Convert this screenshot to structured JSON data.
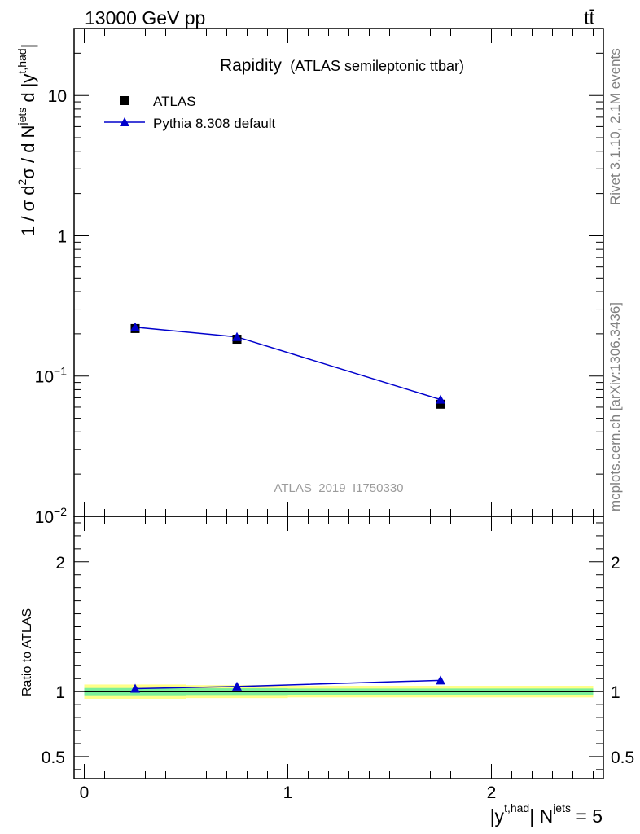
{
  "header": {
    "energy_label": "13000 GeV pp",
    "process_label": "tt̄"
  },
  "side_labels": {
    "rivet": "Rivet 3.1.10,  2.1M events",
    "mcplots": "mcplots.cern.ch [arXiv:1306.3436]"
  },
  "chart_data": [
    {
      "type": "scatter",
      "title": "Rapidity",
      "subtitle": "(ATLAS semileptonic ttbar)",
      "watermark": "ATLAS_2019_I1750330",
      "ylabel_parts": [
        "1 / σ d",
        "2",
        "σ / d N",
        "jets",
        " d |y",
        "t,had",
        "|"
      ],
      "yscale": "log",
      "xlim": [
        -0.05,
        2.55
      ],
      "ylim": [
        0.01,
        30
      ],
      "ytick_labels": [
        {
          "value": 10,
          "base": "10",
          "exp": ""
        },
        {
          "value": 1,
          "base": "1",
          "exp": ""
        },
        {
          "value": 0.1,
          "base": "10",
          "exp": "−1"
        },
        {
          "value": 0.01,
          "base": "10",
          "exp": "−2"
        }
      ],
      "legend_placement": "top-left",
      "series": [
        {
          "name": "ATLAS",
          "marker": "square",
          "color": "#000000",
          "x": [
            0.25,
            0.75,
            1.75
          ],
          "y": [
            0.218,
            0.183,
            0.063
          ]
        },
        {
          "name": "Pythia 8.308 default",
          "marker": "triangle",
          "color": "#0000cc",
          "x": [
            0.25,
            0.75,
            1.75
          ],
          "y": [
            0.223,
            0.19,
            0.068
          ]
        }
      ]
    },
    {
      "type": "line",
      "ylabel": "Ratio to ATLAS",
      "xlabel_parts": [
        "|y",
        "t,had",
        "| N",
        "jets",
        " = 5"
      ],
      "xlim": [
        -0.05,
        2.55
      ],
      "ylim": [
        0.33,
        2.35
      ],
      "xtick_labels": [
        {
          "value": 0,
          "label": "0"
        },
        {
          "value": 1,
          "label": "1"
        },
        {
          "value": 2,
          "label": "2"
        }
      ],
      "ytick_labels": [
        {
          "value": 2,
          "label": "2"
        },
        {
          "value": 1,
          "label": "1"
        },
        {
          "value": 0.5,
          "label": "0.5"
        }
      ],
      "bands": {
        "outer_color": "#ffff88",
        "inner_color": "#7bef9a",
        "bins": [
          {
            "x0": 0.0,
            "x1": 0.5,
            "outer": [
              0.945,
              1.055
            ],
            "inner": [
              0.972,
              1.028
            ]
          },
          {
            "x0": 0.5,
            "x1": 1.0,
            "outer": [
              0.95,
              1.05
            ],
            "inner": [
              0.974,
              1.026
            ]
          },
          {
            "x0": 1.0,
            "x1": 2.5,
            "outer": [
              0.955,
              1.045
            ],
            "inner": [
              0.976,
              1.024
            ]
          }
        ]
      },
      "series": [
        {
          "name": "Pythia 8.308 default",
          "color": "#0000cc",
          "x": [
            0.25,
            0.75,
            1.75
          ],
          "y": [
            1.023,
            1.04,
            1.087
          ]
        }
      ]
    }
  ]
}
